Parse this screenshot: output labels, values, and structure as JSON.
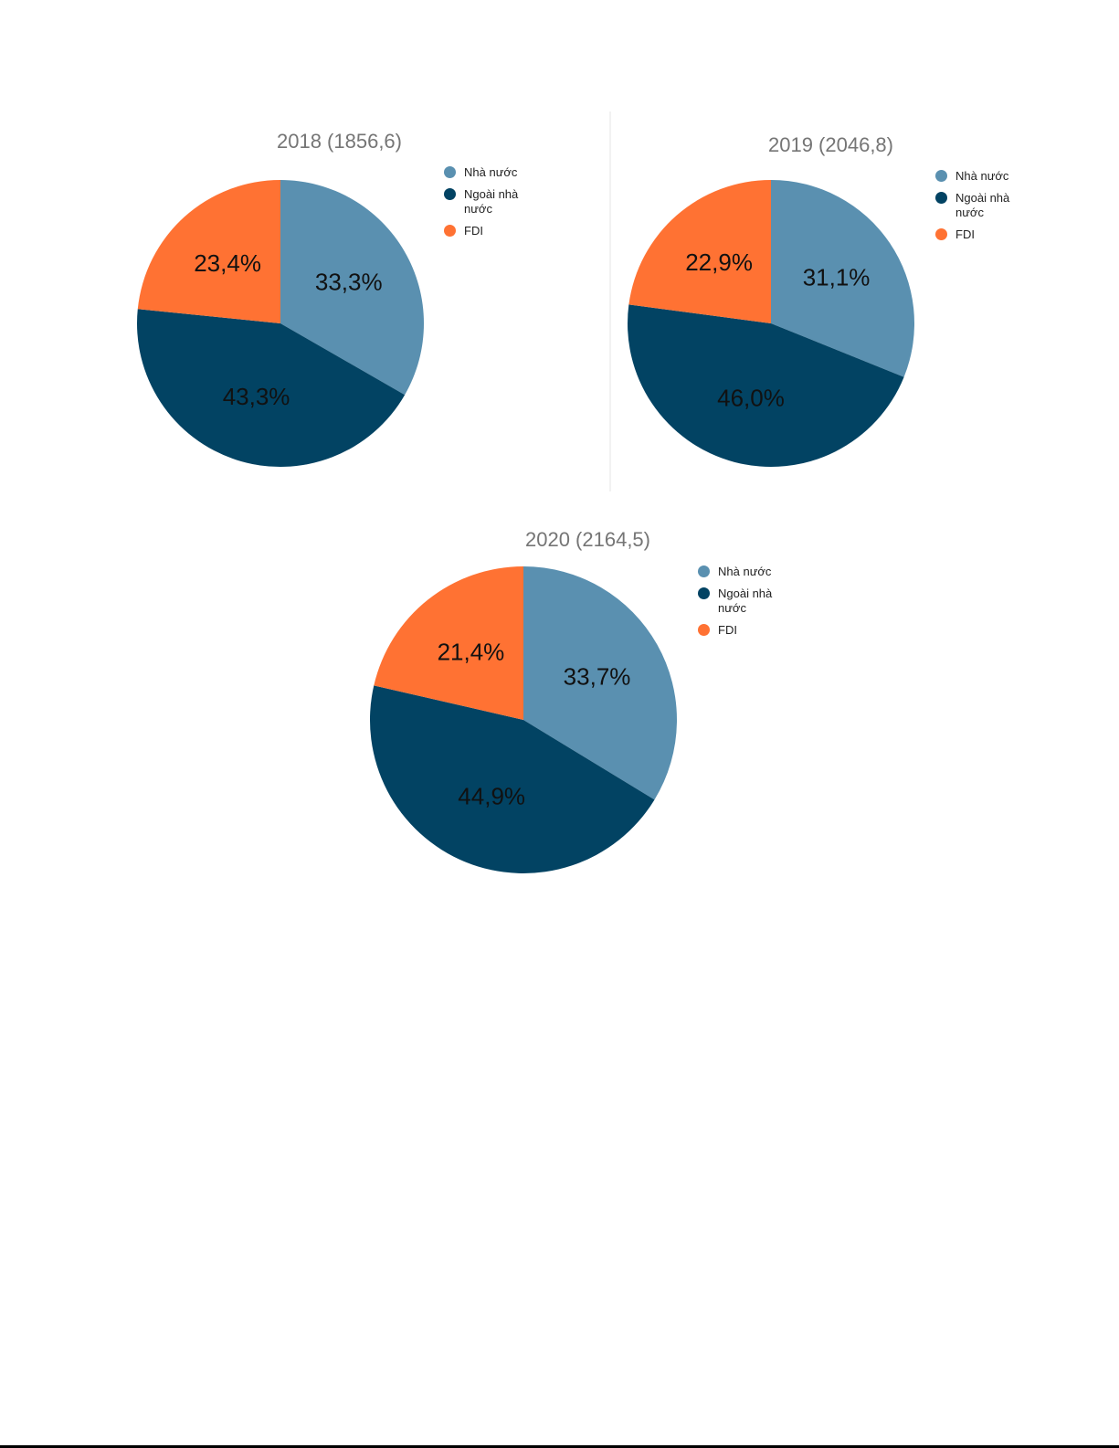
{
  "colors": {
    "state": "#5a90b0",
    "non_state": "#024363",
    "fdi": "#ff7233"
  },
  "chart_data": [
    {
      "type": "pie",
      "title": "2018 (1856,6)",
      "categories": [
        "Nhà nước",
        "Ngoài nhà nước",
        "FDI"
      ],
      "values": [
        33.3,
        43.3,
        23.4
      ],
      "value_labels": [
        "33,3%",
        "43,3%",
        "23,4%"
      ],
      "colors": [
        "#5a90b0",
        "#024363",
        "#ff7233"
      ],
      "legend": {
        "placement": "right",
        "items": [
          "Nhà nước",
          "Ngoài nhà nước",
          "FDI"
        ]
      }
    },
    {
      "type": "pie",
      "title": "2019 (2046,8)",
      "categories": [
        "Nhà nước",
        "Ngoài nhà nước",
        "FDI"
      ],
      "values": [
        31.1,
        46.0,
        22.9
      ],
      "value_labels": [
        "31,1%",
        "46,0%",
        "22,9%"
      ],
      "colors": [
        "#5a90b0",
        "#024363",
        "#ff7233"
      ],
      "legend": {
        "placement": "right",
        "items": [
          "Nhà nước",
          "Ngoài nhà nước",
          "FDI"
        ]
      }
    },
    {
      "type": "pie",
      "title": "2020 (2164,5)",
      "categories": [
        "Nhà nước",
        "Ngoài nhà nước",
        "FDI"
      ],
      "values": [
        33.7,
        44.9,
        21.4
      ],
      "value_labels": [
        "33,7%",
        "44,9%",
        "21,4%"
      ],
      "colors": [
        "#5a90b0",
        "#024363",
        "#ff7233"
      ],
      "legend": {
        "placement": "right",
        "items": [
          "Nhà nước",
          "Ngoài nhà nước",
          "FDI"
        ]
      }
    }
  ]
}
